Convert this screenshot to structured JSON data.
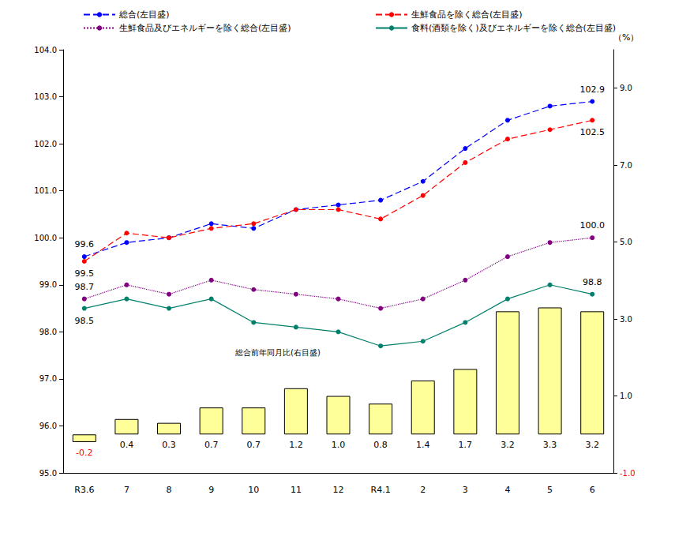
{
  "chart_data": {
    "type": "line",
    "categories": [
      "R3.6",
      "7",
      "8",
      "9",
      "10",
      "11",
      "12",
      "R4.1",
      "2",
      "3",
      "4",
      "5",
      "6"
    ],
    "series": [
      {
        "name": "総合(左目盛)",
        "color": "#0000ff",
        "line_style": "dashed",
        "marker": "circle",
        "values": [
          99.6,
          99.9,
          100.0,
          100.3,
          100.2,
          100.6,
          100.7,
          100.8,
          101.2,
          101.9,
          102.5,
          102.8,
          102.9
        ],
        "value_labels": [
          "99.6",
          null,
          null,
          null,
          null,
          null,
          null,
          null,
          null,
          null,
          null,
          null,
          "102.9"
        ]
      },
      {
        "name": "生鮮食品を除く総合(左目盛)",
        "color": "#ff0000",
        "line_style": "dashed",
        "marker": "circle",
        "values": [
          99.5,
          100.1,
          100.0,
          100.2,
          100.3,
          100.6,
          100.6,
          100.4,
          100.9,
          101.6,
          102.1,
          102.3,
          102.5
        ],
        "value_labels": [
          "99.5",
          null,
          null,
          null,
          null,
          null,
          null,
          null,
          null,
          null,
          null,
          null,
          "102.5"
        ]
      },
      {
        "name": "生鮮食品及びエネルギーを除く総合(左目盛)",
        "color": "#800080",
        "line_style": "dotted",
        "marker": "circle",
        "values": [
          98.7,
          99.0,
          98.8,
          99.1,
          98.9,
          98.8,
          98.7,
          98.5,
          98.7,
          99.1,
          99.6,
          99.9,
          100.0
        ],
        "value_labels": [
          "98.7",
          null,
          null,
          null,
          null,
          null,
          null,
          null,
          null,
          null,
          null,
          null,
          "100.0"
        ]
      },
      {
        "name": "食料(酒類を除く)及びエネルギーを除く総合(左目盛)",
        "color": "#00806a",
        "line_style": "solid",
        "marker": "circle",
        "values": [
          98.5,
          98.7,
          98.5,
          98.7,
          98.2,
          98.1,
          98.0,
          97.7,
          97.8,
          98.2,
          98.7,
          99.0,
          98.8
        ],
        "value_labels": [
          "98.5",
          null,
          null,
          null,
          null,
          null,
          null,
          null,
          null,
          null,
          null,
          null,
          "98.8"
        ]
      },
      {
        "name": "総合前年同月比(右目盛)",
        "type": "bar",
        "axis": "y2",
        "color": "#ffff99",
        "data_labels": true,
        "values": [
          -0.2,
          0.4,
          0.3,
          0.7,
          0.7,
          1.2,
          1.0,
          0.8,
          1.4,
          1.7,
          3.2,
          3.3,
          3.2
        ],
        "value_labels": [
          "-0.2",
          "0.4",
          "0.3",
          "0.7",
          "0.7",
          "1.2",
          "1.0",
          "0.8",
          "1.4",
          "1.7",
          "3.2",
          "3.3",
          "3.2"
        ]
      }
    ],
    "ylim": [
      95,
      104
    ],
    "yticks": [
      {
        "value": 95,
        "label": "95.0"
      },
      {
        "value": 96,
        "label": "96.0"
      },
      {
        "value": 97,
        "label": "97.0"
      },
      {
        "value": 98,
        "label": "98.0"
      },
      {
        "value": 99,
        "label": "99.0"
      },
      {
        "value": 100,
        "label": "100.0"
      },
      {
        "value": 101,
        "label": "101.0"
      },
      {
        "value": 102,
        "label": "102.0"
      },
      {
        "value": 103,
        "label": "103.0"
      },
      {
        "value": 104,
        "label": "104.0"
      }
    ],
    "y2label": "（%）",
    "y2lim": [
      -1,
      10
    ],
    "y2ticks": [
      {
        "value": -1,
        "label": "-1.0"
      },
      {
        "value": 1,
        "label": "1.0"
      },
      {
        "value": 3,
        "label": "3.0"
      },
      {
        "value": 5,
        "label": "5.0"
      },
      {
        "value": 7,
        "label": "7.0"
      },
      {
        "value": 9,
        "label": "9.0"
      }
    ],
    "grid": false,
    "legend": "top"
  }
}
